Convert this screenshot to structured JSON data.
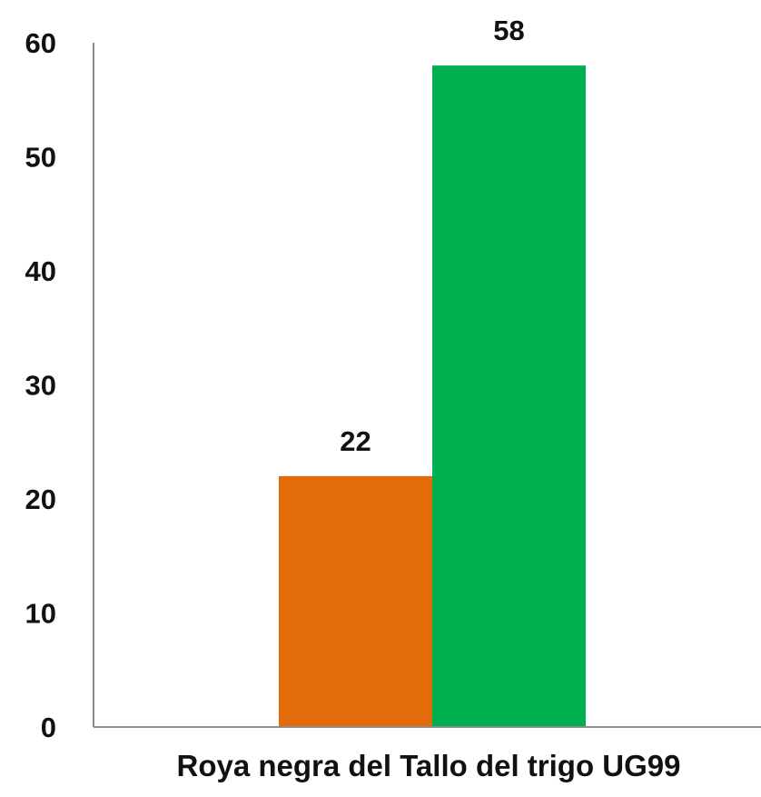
{
  "chart_data": {
    "type": "bar",
    "title": "",
    "xlabel": "",
    "ylabel": "",
    "categories": [
      "Roya negra del Tallo del trigo UG99"
    ],
    "series": [
      {
        "values": [
          22
        ],
        "color": "#e36c0a"
      },
      {
        "values": [
          58
        ],
        "color": "#00b050"
      }
    ],
    "ylim": [
      0,
      60
    ],
    "yticks": [
      0,
      10,
      20,
      30,
      40,
      50,
      60
    ],
    "grid": false,
    "legend": "none",
    "data_labels": true,
    "axis_color": "#8c8c8c"
  }
}
